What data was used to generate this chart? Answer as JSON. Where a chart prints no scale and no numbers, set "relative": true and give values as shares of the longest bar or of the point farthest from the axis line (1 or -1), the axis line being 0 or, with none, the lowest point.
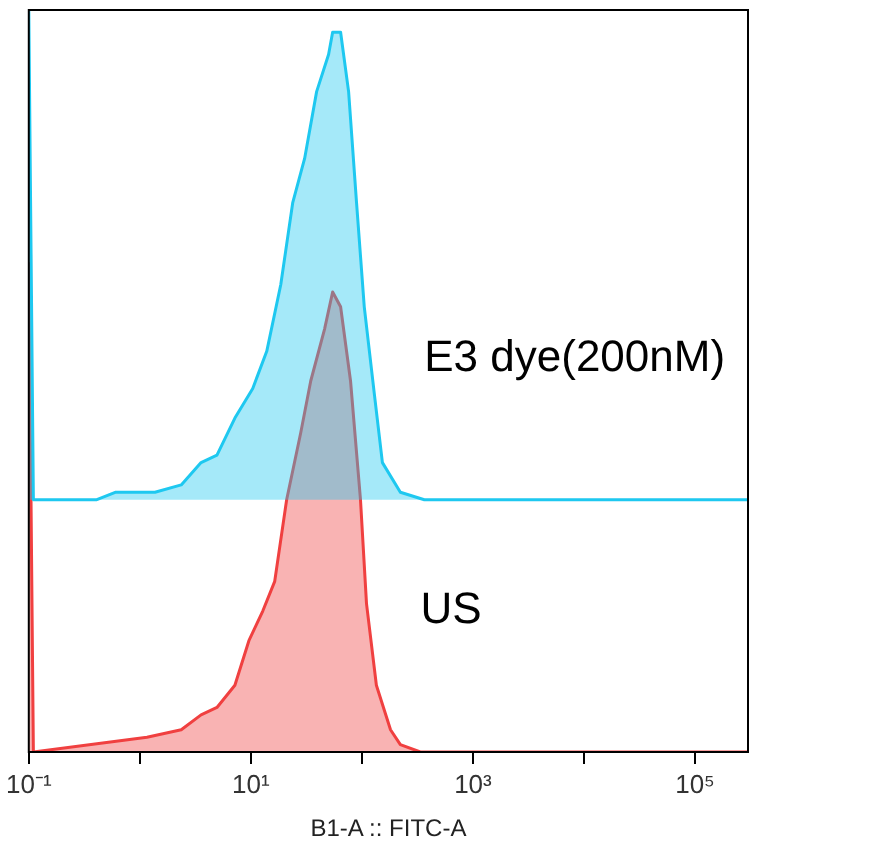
{
  "chart_data": {
    "type": "area",
    "relative": true,
    "xlabel": "B1-A :: FITC-A",
    "log": "x",
    "xlim": [
      0.1,
      300000
    ],
    "xticks": [
      {
        "value": 0.1,
        "label": "10⁻¹"
      },
      {
        "value": 1,
        "label": null
      },
      {
        "value": 10,
        "label": "10¹"
      },
      {
        "value": 100,
        "label": null
      },
      {
        "value": 1000,
        "label": "10³"
      },
      {
        "value": 10000,
        "label": null
      },
      {
        "value": 100000,
        "label": "10⁵"
      }
    ],
    "grid": false,
    "legend": false,
    "tick_labels": "x",
    "series": [
      {
        "name": "E3 dye(200nM)",
        "color": "#1ec8f0",
        "x": [
          0.1,
          0.11,
          0.41,
          0.6,
          1.37,
          2.36,
          3.56,
          4.95,
          7.18,
          10.4,
          13.9,
          18.6,
          23.8,
          30.5,
          39.1,
          50.1,
          54.5,
          64.3,
          75.9,
          89.5,
          105,
          130,
          153,
          222,
          365,
          468,
          300000
        ],
        "values": [
          1.0,
          0.34,
          0.34,
          0.35,
          0.35,
          0.36,
          0.39,
          0.4,
          0.45,
          0.49,
          0.54,
          0.63,
          0.74,
          0.8,
          0.89,
          0.94,
          0.97,
          0.97,
          0.89,
          0.74,
          0.6,
          0.48,
          0.39,
          0.35,
          0.34,
          0.34,
          0.34
        ]
      },
      {
        "name": "US",
        "color": "#f04040",
        "x": [
          0.1,
          0.11,
          1.16,
          2.36,
          3.56,
          4.95,
          7.18,
          9.6,
          12.8,
          16.4,
          21.0,
          28.1,
          34.6,
          46.1,
          54.5,
          64.3,
          79.0,
          97.1,
          110,
          135,
          181,
          222,
          336,
          300000
        ],
        "values": [
          0.66,
          0,
          0.02,
          0.03,
          0.05,
          0.06,
          0.09,
          0.15,
          0.19,
          0.23,
          0.34,
          0.43,
          0.5,
          0.57,
          0.62,
          0.6,
          0.5,
          0.34,
          0.2,
          0.09,
          0.03,
          0.01,
          0,
          0
        ]
      }
    ]
  }
}
